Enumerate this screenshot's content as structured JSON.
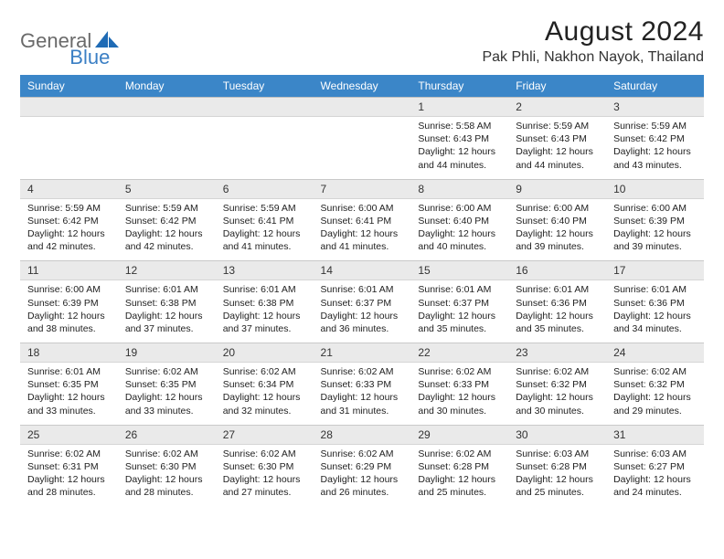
{
  "logo": {
    "textGray": "General",
    "textBlue": "Blue"
  },
  "title": "August 2024",
  "location": "Pak Phli, Nakhon Nayok, Thailand",
  "colors": {
    "headerBar": "#3b86c8",
    "dayRowBg": "#eaeaea",
    "border": "#c9c9c9",
    "logoGray": "#6a6a6a",
    "logoBlue": "#3b7fc4"
  },
  "dayHeaders": [
    "Sunday",
    "Monday",
    "Tuesday",
    "Wednesday",
    "Thursday",
    "Friday",
    "Saturday"
  ],
  "weeks": [
    {
      "nums": [
        "",
        "",
        "",
        "",
        "1",
        "2",
        "3"
      ],
      "cells": [
        {},
        {},
        {},
        {},
        {
          "sunrise": "Sunrise: 5:58 AM",
          "sunset": "Sunset: 6:43 PM",
          "dl1": "Daylight: 12 hours",
          "dl2": "and 44 minutes."
        },
        {
          "sunrise": "Sunrise: 5:59 AM",
          "sunset": "Sunset: 6:43 PM",
          "dl1": "Daylight: 12 hours",
          "dl2": "and 44 minutes."
        },
        {
          "sunrise": "Sunrise: 5:59 AM",
          "sunset": "Sunset: 6:42 PM",
          "dl1": "Daylight: 12 hours",
          "dl2": "and 43 minutes."
        }
      ]
    },
    {
      "nums": [
        "4",
        "5",
        "6",
        "7",
        "8",
        "9",
        "10"
      ],
      "cells": [
        {
          "sunrise": "Sunrise: 5:59 AM",
          "sunset": "Sunset: 6:42 PM",
          "dl1": "Daylight: 12 hours",
          "dl2": "and 42 minutes."
        },
        {
          "sunrise": "Sunrise: 5:59 AM",
          "sunset": "Sunset: 6:42 PM",
          "dl1": "Daylight: 12 hours",
          "dl2": "and 42 minutes."
        },
        {
          "sunrise": "Sunrise: 5:59 AM",
          "sunset": "Sunset: 6:41 PM",
          "dl1": "Daylight: 12 hours",
          "dl2": "and 41 minutes."
        },
        {
          "sunrise": "Sunrise: 6:00 AM",
          "sunset": "Sunset: 6:41 PM",
          "dl1": "Daylight: 12 hours",
          "dl2": "and 41 minutes."
        },
        {
          "sunrise": "Sunrise: 6:00 AM",
          "sunset": "Sunset: 6:40 PM",
          "dl1": "Daylight: 12 hours",
          "dl2": "and 40 minutes."
        },
        {
          "sunrise": "Sunrise: 6:00 AM",
          "sunset": "Sunset: 6:40 PM",
          "dl1": "Daylight: 12 hours",
          "dl2": "and 39 minutes."
        },
        {
          "sunrise": "Sunrise: 6:00 AM",
          "sunset": "Sunset: 6:39 PM",
          "dl1": "Daylight: 12 hours",
          "dl2": "and 39 minutes."
        }
      ]
    },
    {
      "nums": [
        "11",
        "12",
        "13",
        "14",
        "15",
        "16",
        "17"
      ],
      "cells": [
        {
          "sunrise": "Sunrise: 6:00 AM",
          "sunset": "Sunset: 6:39 PM",
          "dl1": "Daylight: 12 hours",
          "dl2": "and 38 minutes."
        },
        {
          "sunrise": "Sunrise: 6:01 AM",
          "sunset": "Sunset: 6:38 PM",
          "dl1": "Daylight: 12 hours",
          "dl2": "and 37 minutes."
        },
        {
          "sunrise": "Sunrise: 6:01 AM",
          "sunset": "Sunset: 6:38 PM",
          "dl1": "Daylight: 12 hours",
          "dl2": "and 37 minutes."
        },
        {
          "sunrise": "Sunrise: 6:01 AM",
          "sunset": "Sunset: 6:37 PM",
          "dl1": "Daylight: 12 hours",
          "dl2": "and 36 minutes."
        },
        {
          "sunrise": "Sunrise: 6:01 AM",
          "sunset": "Sunset: 6:37 PM",
          "dl1": "Daylight: 12 hours",
          "dl2": "and 35 minutes."
        },
        {
          "sunrise": "Sunrise: 6:01 AM",
          "sunset": "Sunset: 6:36 PM",
          "dl1": "Daylight: 12 hours",
          "dl2": "and 35 minutes."
        },
        {
          "sunrise": "Sunrise: 6:01 AM",
          "sunset": "Sunset: 6:36 PM",
          "dl1": "Daylight: 12 hours",
          "dl2": "and 34 minutes."
        }
      ]
    },
    {
      "nums": [
        "18",
        "19",
        "20",
        "21",
        "22",
        "23",
        "24"
      ],
      "cells": [
        {
          "sunrise": "Sunrise: 6:01 AM",
          "sunset": "Sunset: 6:35 PM",
          "dl1": "Daylight: 12 hours",
          "dl2": "and 33 minutes."
        },
        {
          "sunrise": "Sunrise: 6:02 AM",
          "sunset": "Sunset: 6:35 PM",
          "dl1": "Daylight: 12 hours",
          "dl2": "and 33 minutes."
        },
        {
          "sunrise": "Sunrise: 6:02 AM",
          "sunset": "Sunset: 6:34 PM",
          "dl1": "Daylight: 12 hours",
          "dl2": "and 32 minutes."
        },
        {
          "sunrise": "Sunrise: 6:02 AM",
          "sunset": "Sunset: 6:33 PM",
          "dl1": "Daylight: 12 hours",
          "dl2": "and 31 minutes."
        },
        {
          "sunrise": "Sunrise: 6:02 AM",
          "sunset": "Sunset: 6:33 PM",
          "dl1": "Daylight: 12 hours",
          "dl2": "and 30 minutes."
        },
        {
          "sunrise": "Sunrise: 6:02 AM",
          "sunset": "Sunset: 6:32 PM",
          "dl1": "Daylight: 12 hours",
          "dl2": "and 30 minutes."
        },
        {
          "sunrise": "Sunrise: 6:02 AM",
          "sunset": "Sunset: 6:32 PM",
          "dl1": "Daylight: 12 hours",
          "dl2": "and 29 minutes."
        }
      ]
    },
    {
      "nums": [
        "25",
        "26",
        "27",
        "28",
        "29",
        "30",
        "31"
      ],
      "cells": [
        {
          "sunrise": "Sunrise: 6:02 AM",
          "sunset": "Sunset: 6:31 PM",
          "dl1": "Daylight: 12 hours",
          "dl2": "and 28 minutes."
        },
        {
          "sunrise": "Sunrise: 6:02 AM",
          "sunset": "Sunset: 6:30 PM",
          "dl1": "Daylight: 12 hours",
          "dl2": "and 28 minutes."
        },
        {
          "sunrise": "Sunrise: 6:02 AM",
          "sunset": "Sunset: 6:30 PM",
          "dl1": "Daylight: 12 hours",
          "dl2": "and 27 minutes."
        },
        {
          "sunrise": "Sunrise: 6:02 AM",
          "sunset": "Sunset: 6:29 PM",
          "dl1": "Daylight: 12 hours",
          "dl2": "and 26 minutes."
        },
        {
          "sunrise": "Sunrise: 6:02 AM",
          "sunset": "Sunset: 6:28 PM",
          "dl1": "Daylight: 12 hours",
          "dl2": "and 25 minutes."
        },
        {
          "sunrise": "Sunrise: 6:03 AM",
          "sunset": "Sunset: 6:28 PM",
          "dl1": "Daylight: 12 hours",
          "dl2": "and 25 minutes."
        },
        {
          "sunrise": "Sunrise: 6:03 AM",
          "sunset": "Sunset: 6:27 PM",
          "dl1": "Daylight: 12 hours",
          "dl2": "and 24 minutes."
        }
      ]
    }
  ]
}
